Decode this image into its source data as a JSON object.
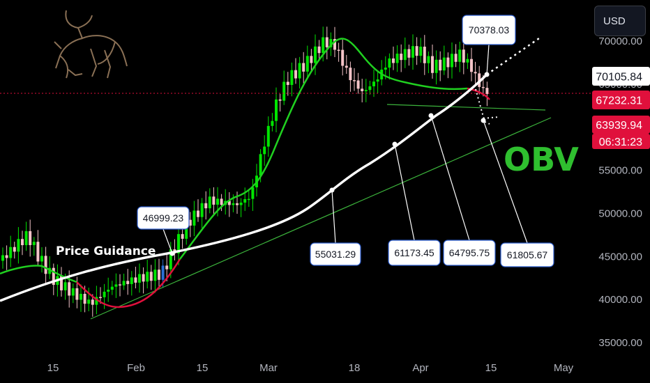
{
  "currency": "USD",
  "colors": {
    "background": "#000000",
    "up": "#00e600",
    "down": "#f4c4c8",
    "ma_up": "#20d020",
    "ma_down": "#e0103c",
    "guidance": "#ffffff",
    "trendline": "#3cb43c",
    "obv": "#2fbf2f",
    "last_price": "#e0103c"
  },
  "chart_data": {
    "type": "candlestick",
    "title": "",
    "ylim": [
      35000,
      72000
    ],
    "y_ticks": [
      "35000.00",
      "40000.00",
      "45000.00",
      "50000.00",
      "55000.00",
      "60000.00",
      "65000.00",
      "70000.00"
    ],
    "x_ticks": [
      "15",
      "Feb",
      "15",
      "Mar",
      "18",
      "Apr",
      "15",
      "May"
    ],
    "grid": false,
    "series_label": "Price Guidance",
    "overlay_text": "OBV",
    "price_labels": [
      {
        "text": "70105.84",
        "value": 70105.84,
        "style": "white"
      },
      {
        "text": "67232.31",
        "value": 67232.31,
        "style": "red"
      },
      {
        "text": "63939.94",
        "value": 63939.94,
        "style": "red"
      },
      {
        "text": "06:31:23",
        "style": "red"
      }
    ],
    "annotations": [
      "46999.23",
      "55031.29",
      "61173.45",
      "64795.75",
      "61805.67",
      "70378.03"
    ],
    "price_guidance_points": [
      46999.23,
      55031.29,
      61173.45,
      64795.75,
      70378.03
    ],
    "current_price": 63939.94,
    "timer": "06:31:23"
  }
}
